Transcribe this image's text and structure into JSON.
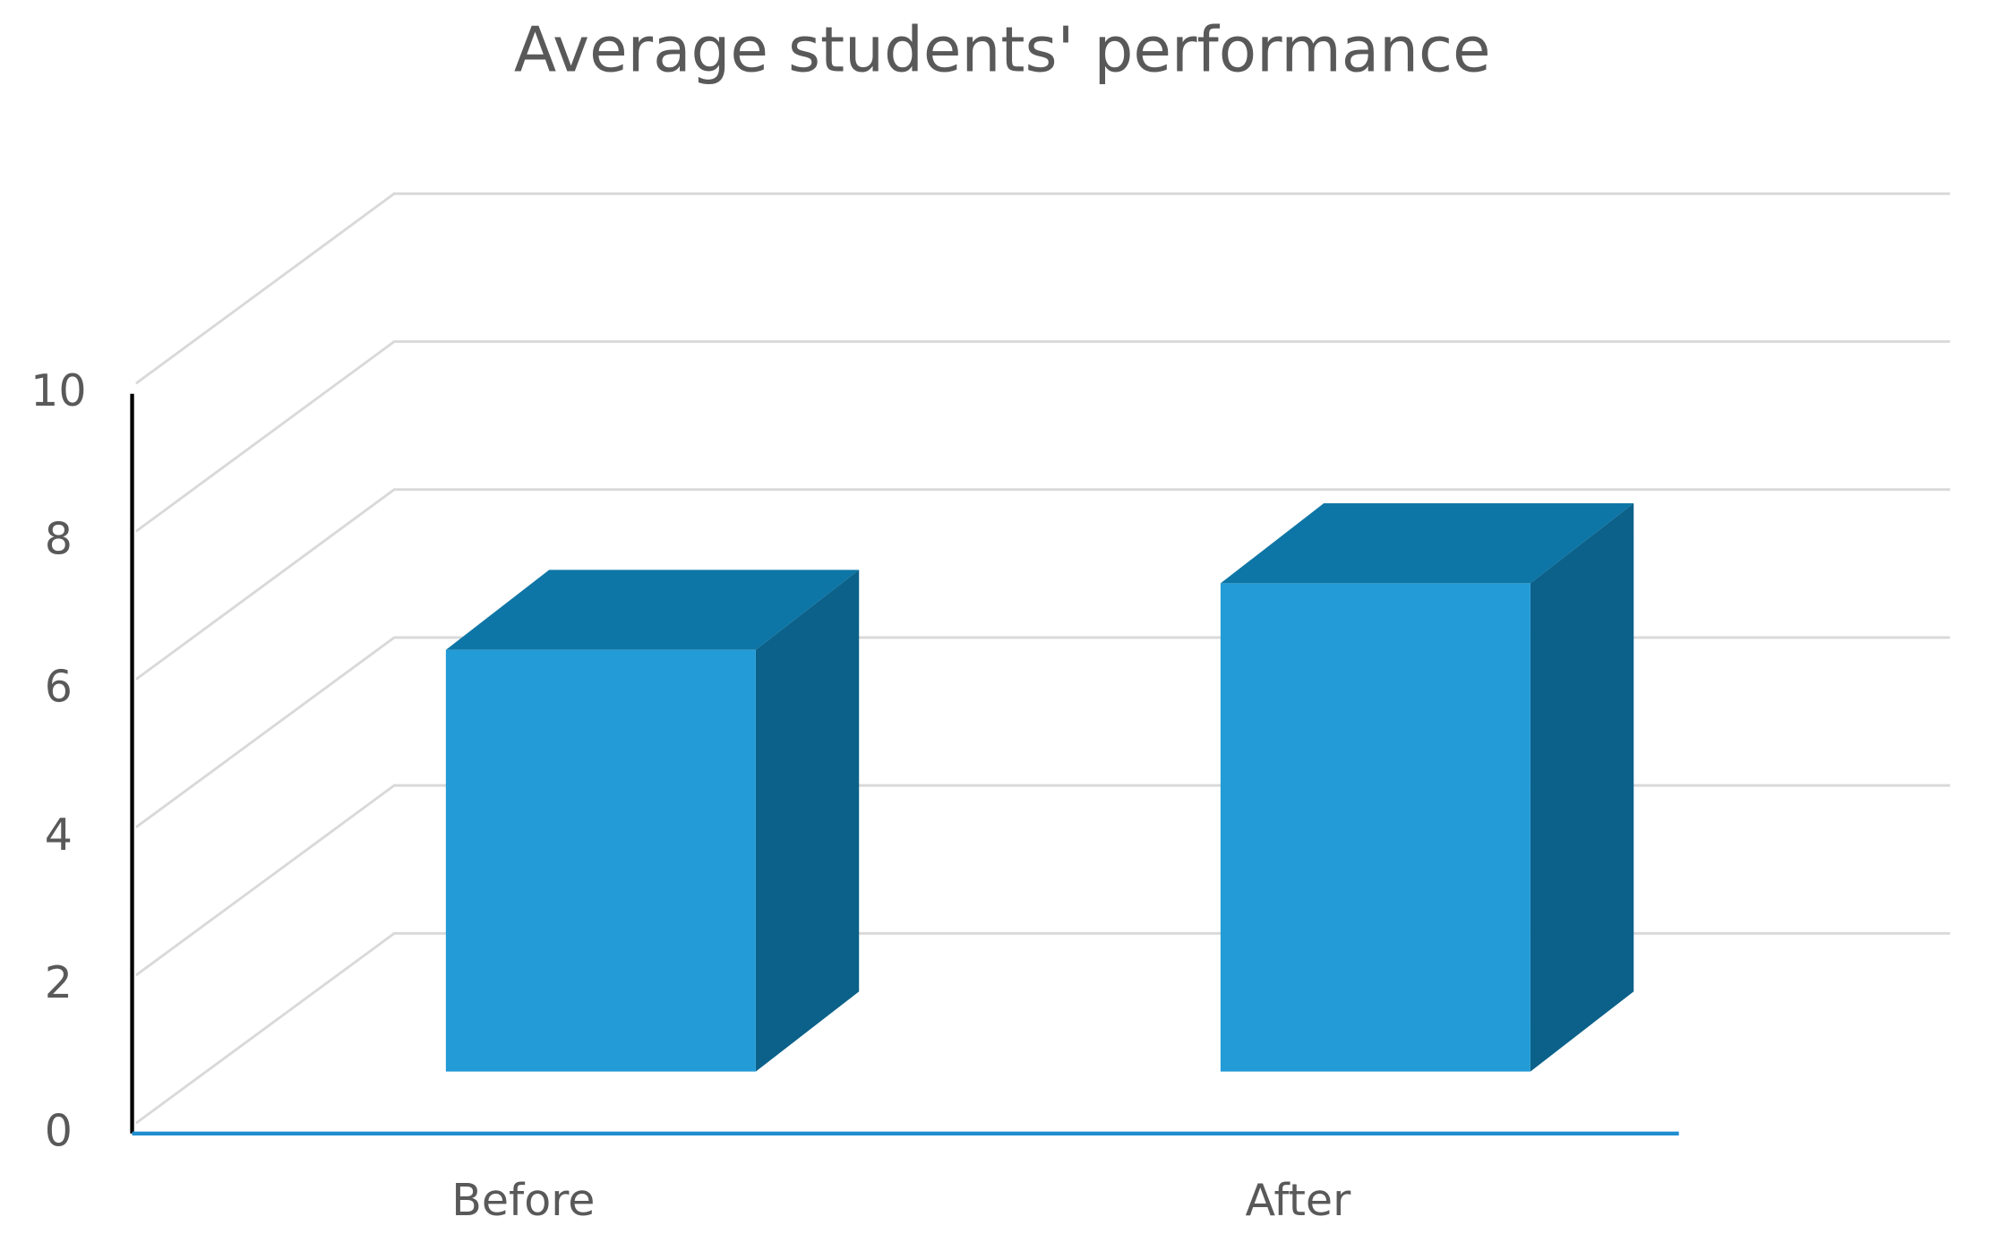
{
  "chart_data": {
    "type": "bar3d",
    "title": "Average students' performance",
    "categories": [
      "Before",
      "After"
    ],
    "values": [
      5.7,
      6.6
    ],
    "color": "#239bd6",
    "ylim": [
      0,
      10
    ],
    "yticks": [
      0,
      2,
      4,
      6,
      8,
      10
    ],
    "grid": true
  }
}
